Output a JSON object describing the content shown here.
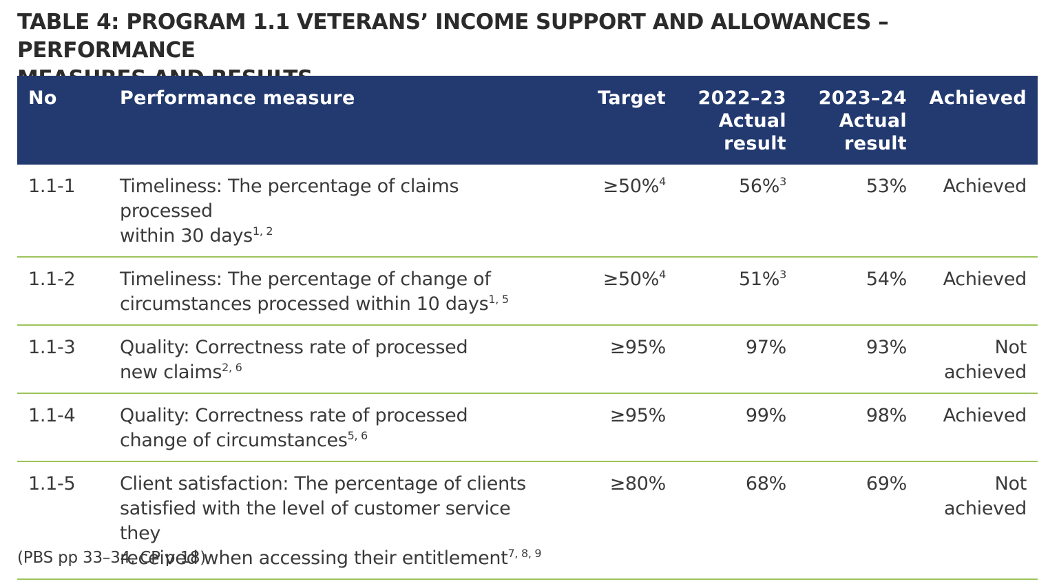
{
  "title": {
    "line1": "TABLE 4: PROGRAM 1.1 VETERANS’ INCOME SUPPORT AND ALLOWANCES – PERFORMANCE",
    "line2": "MEASURES AND RESULTS"
  },
  "header": {
    "no": "No",
    "measure": "Performance measure",
    "target": "Target",
    "y1": [
      "2022–23",
      "Actual",
      "result"
    ],
    "y2": [
      "2023–24",
      "Actual",
      "result"
    ],
    "achieved": "Achieved"
  },
  "rows": [
    {
      "no": "1.1-1",
      "measure": [
        "Timeliness: The percentage of claims processed",
        "within 30 days"
      ],
      "measure_sup": "1, 2",
      "target": "≥50%",
      "target_sup": "4",
      "y1": "56%",
      "y1_sup": "3",
      "y2": "53%",
      "achieved": [
        "Achieved"
      ]
    },
    {
      "no": "1.1-2",
      "measure": [
        "Timeliness: The percentage of change of",
        "circumstances processed within 10 days"
      ],
      "measure_sup": "1, 5",
      "target": "≥50%",
      "target_sup": "4",
      "y1": "51%",
      "y1_sup": "3",
      "y2": "54%",
      "achieved": [
        "Achieved"
      ]
    },
    {
      "no": "1.1-3",
      "measure": [
        "Quality: Correctness rate of processed",
        "new claims"
      ],
      "measure_sup": "2, 6",
      "target": "≥95%",
      "target_sup": "",
      "y1": "97%",
      "y1_sup": "",
      "y2": "93%",
      "achieved": [
        "Not",
        "achieved"
      ]
    },
    {
      "no": "1.1-4",
      "measure": [
        "Quality: Correctness rate of processed",
        "change of circumstances"
      ],
      "measure_sup": "5, 6",
      "target": "≥95%",
      "target_sup": "",
      "y1": "99%",
      "y1_sup": "",
      "y2": "98%",
      "achieved": [
        "Achieved"
      ]
    },
    {
      "no": "1.1-5",
      "measure": [
        "Client satisfaction: The percentage of clients",
        "satisfied with the level of customer service they",
        "received when accessing their entitlement"
      ],
      "measure_sup": "7, 8, 9",
      "target": "≥80%",
      "target_sup": "",
      "y1": "68%",
      "y1_sup": "",
      "y2": "69%",
      "achieved": [
        "Not",
        "achieved"
      ]
    }
  ],
  "source": "(PBS pp 33–34, CP p 18)"
}
